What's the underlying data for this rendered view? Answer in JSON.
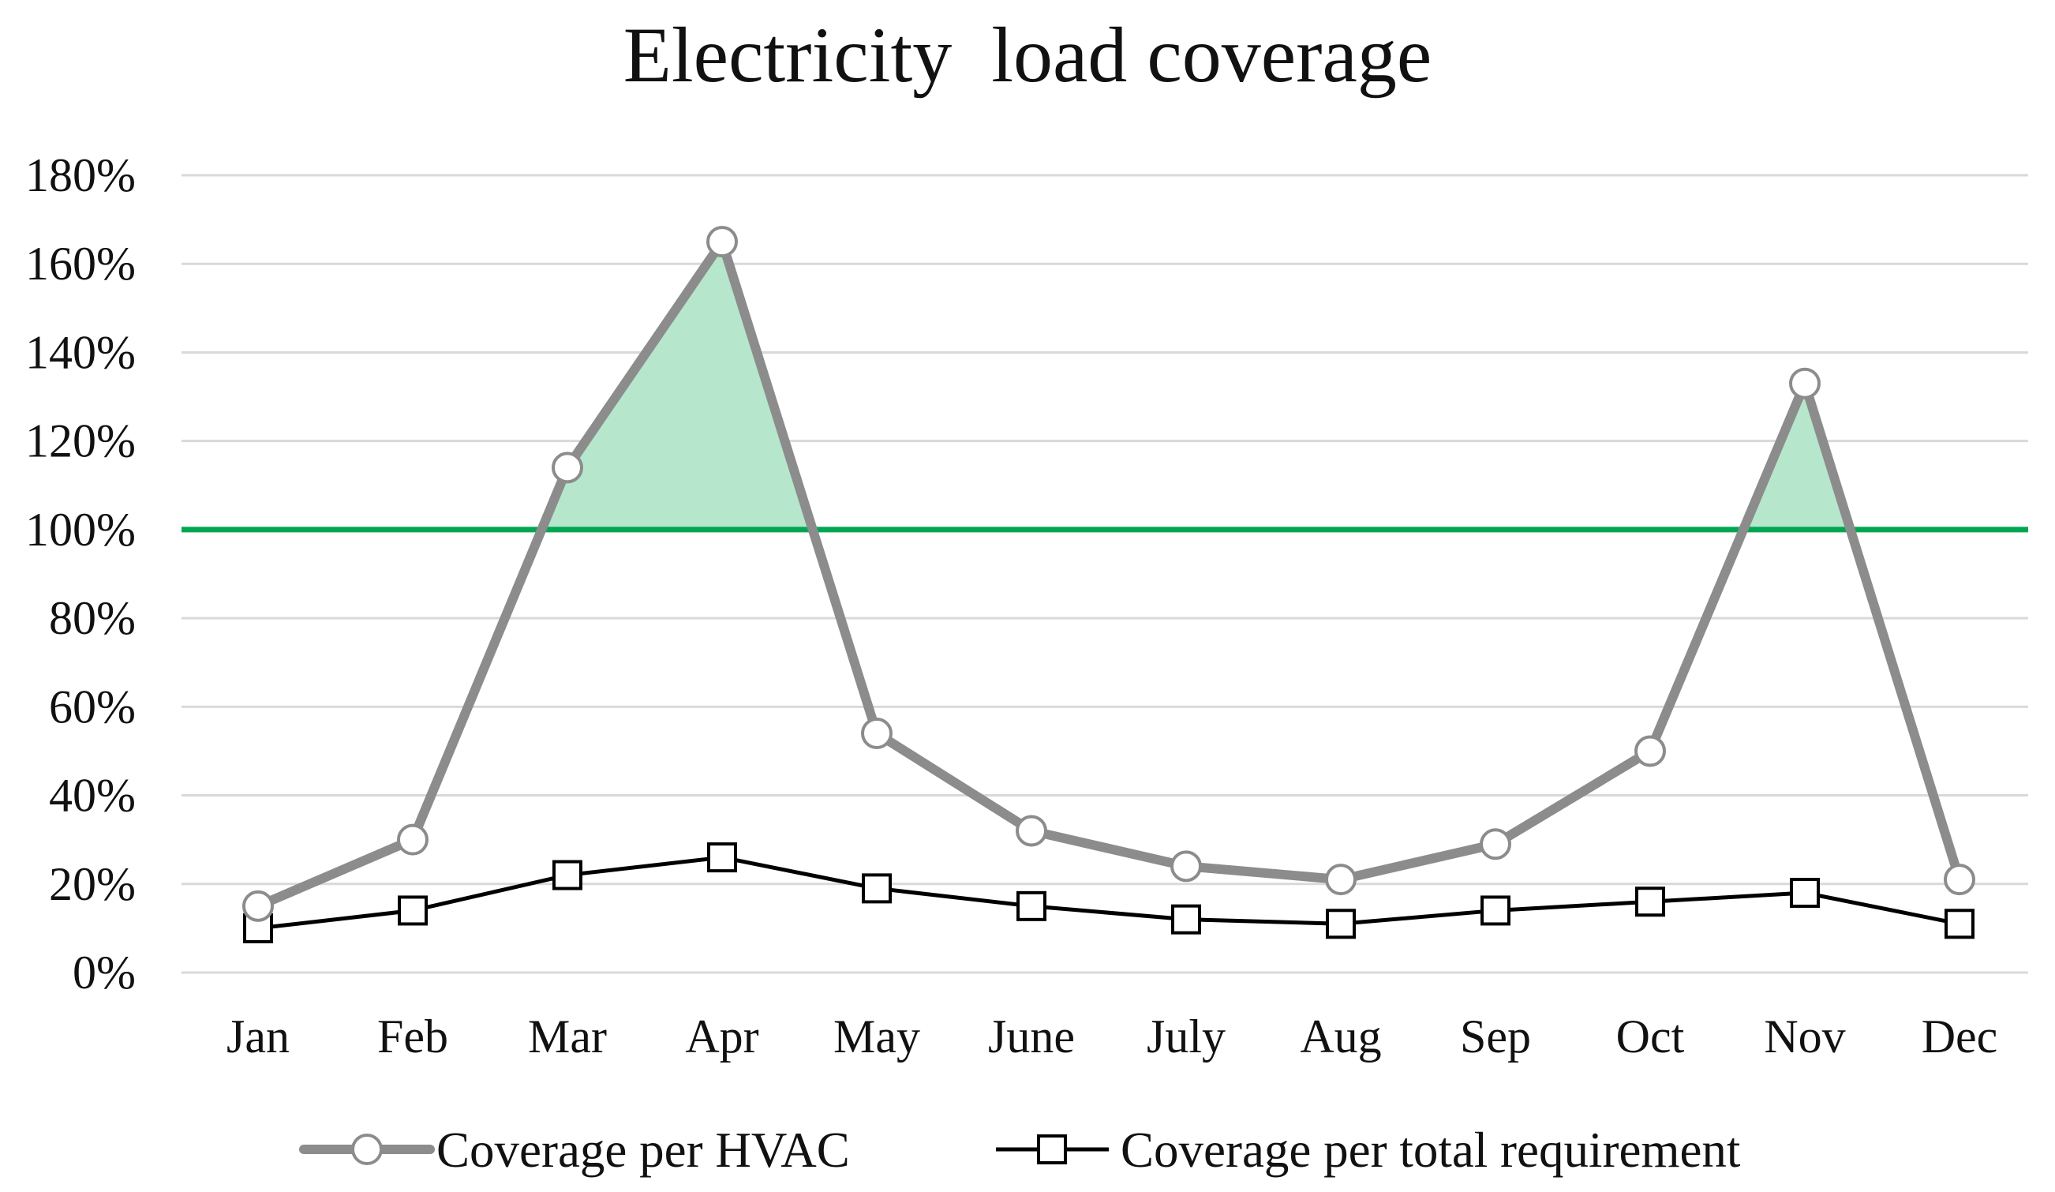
{
  "chart_data": {
    "type": "line",
    "title": "Electricity  load coverage",
    "xlabel": "",
    "ylabel": "",
    "categories": [
      "Jan",
      "Feb",
      "Mar",
      "Apr",
      "May",
      "June",
      "July",
      "Aug",
      "Sep",
      "Oct",
      "Nov",
      "Dec"
    ],
    "ylim": [
      0,
      180
    ],
    "yticks": [
      0,
      20,
      40,
      60,
      80,
      100,
      120,
      140,
      160,
      180
    ],
    "ytick_labels": [
      "0%",
      "20%",
      "40%",
      "60%",
      "80%",
      "100%",
      "120%",
      "140%",
      "160%",
      "180%"
    ],
    "grid": true,
    "legend_position": "bottom",
    "series": [
      {
        "name": "Coverage per HVAC",
        "marker": "circle",
        "color": "#8c8c8c",
        "values": [
          15,
          30,
          114,
          165,
          54,
          32,
          24,
          21,
          29,
          50,
          133,
          21
        ]
      },
      {
        "name": "Coverage per total requirement",
        "marker": "square",
        "color": "#000000",
        "values": [
          10,
          14,
          22,
          26,
          19,
          15,
          12,
          11,
          14,
          16,
          18,
          11
        ]
      }
    ],
    "reference_line": {
      "value": 100,
      "color": "#00a651"
    },
    "shading": {
      "description": "area between HVAC line and 100% reference where HVAC exceeds 100%",
      "color": "#b6e6cb"
    }
  }
}
